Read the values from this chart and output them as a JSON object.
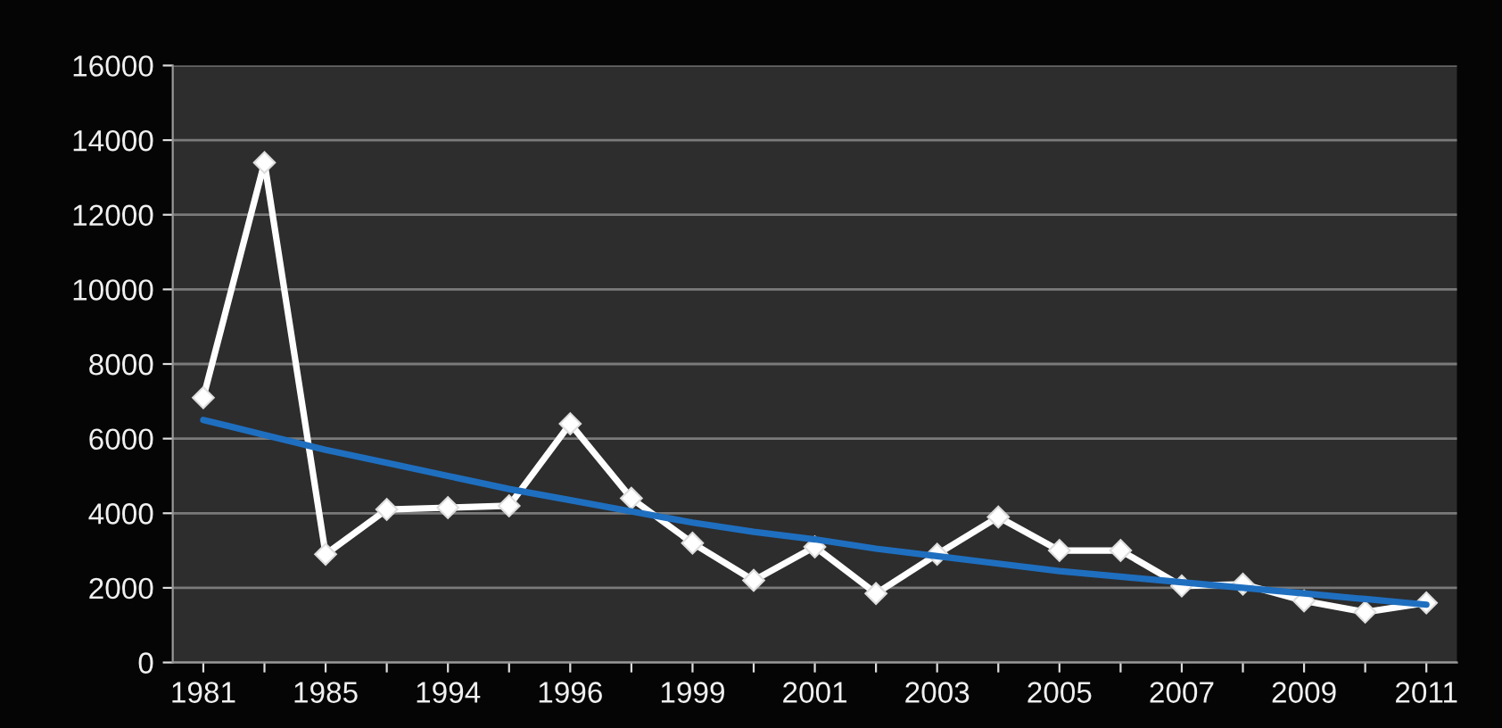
{
  "chart_data": {
    "type": "line",
    "categories": [
      "1981",
      null,
      "1985",
      null,
      "1994",
      null,
      "1996",
      null,
      "1999",
      null,
      "2001",
      null,
      "2003",
      null,
      "2005",
      null,
      "2007",
      null,
      "2009",
      null,
      "2011"
    ],
    "series": [
      {
        "color": "#ffffff",
        "marker": "diamond",
        "values": [
          7100,
          13400,
          2900,
          4100,
          4150,
          4200,
          6400,
          4400,
          3200,
          2200,
          3100,
          1850,
          2900,
          3900,
          3000,
          3000,
          2050,
          2100,
          1650,
          1350,
          1600
        ]
      },
      {
        "color": "#1f6fc0",
        "marker": "none",
        "values": [
          6500,
          6100,
          5700,
          5350,
          5000,
          4650,
          4350,
          4050,
          3750,
          3500,
          3300,
          3050,
          2850,
          2650,
          2450,
          2300,
          2150,
          2000,
          1850,
          1700,
          1550
        ]
      }
    ],
    "ylim": [
      0,
      16000
    ],
    "yticks": [
      0,
      2000,
      4000,
      6000,
      8000,
      10000,
      12000,
      14000,
      16000
    ],
    "grid": "y",
    "legend": false
  }
}
